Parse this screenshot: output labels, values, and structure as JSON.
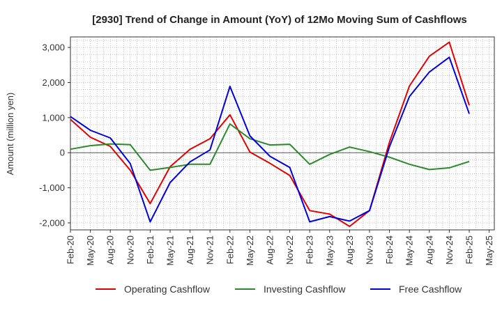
{
  "chart_data": {
    "type": "line",
    "title": "[2930]  Trend of Change in Amount (YoY) of 12Mo Moving Sum of Cashflows",
    "xlabel": "",
    "ylabel": "Amount (million yen)",
    "ylim": [
      -2200,
      3300
    ],
    "yticks": [
      -2000,
      -1000,
      0,
      1000,
      2000,
      3000
    ],
    "ytick_labels": [
      "-2,000",
      "-1,000",
      "0",
      "1,000",
      "2,000",
      "3,000"
    ],
    "grid": true,
    "legend_position": "bottom",
    "categories": [
      "Feb-20",
      "May-20",
      "Aug-20",
      "Nov-20",
      "Feb-21",
      "May-21",
      "Aug-21",
      "Nov-21",
      "Feb-22",
      "May-22",
      "Aug-22",
      "Nov-22",
      "Feb-23",
      "May-23",
      "Aug-23",
      "Nov-23",
      "Feb-24",
      "May-24",
      "Aug-24",
      "Nov-24",
      "Feb-25",
      "May-25"
    ],
    "series": [
      {
        "name": "Operating Cashflow",
        "color": "#e00000",
        "values": [
          950,
          440,
          180,
          -500,
          -1450,
          -400,
          100,
          400,
          1080,
          20,
          -300,
          -650,
          -1650,
          -1750,
          -2100,
          -1650,
          300,
          1900,
          2750,
          3150,
          1350,
          null
        ]
      },
      {
        "name": "Investing Cashflow",
        "color": "#2a8a2a",
        "values": [
          100,
          200,
          250,
          230,
          -500,
          -420,
          -330,
          -330,
          820,
          400,
          220,
          240,
          -330,
          -50,
          160,
          30,
          -130,
          -330,
          -480,
          -430,
          -250,
          null
        ]
      },
      {
        "name": "Free Cashflow",
        "color": "#0000dd",
        "values": [
          1030,
          640,
          420,
          -310,
          -1970,
          -850,
          -260,
          80,
          1890,
          480,
          -100,
          -420,
          -1970,
          -1820,
          -1950,
          -1650,
          170,
          1600,
          2300,
          2720,
          1110,
          null
        ]
      }
    ]
  }
}
